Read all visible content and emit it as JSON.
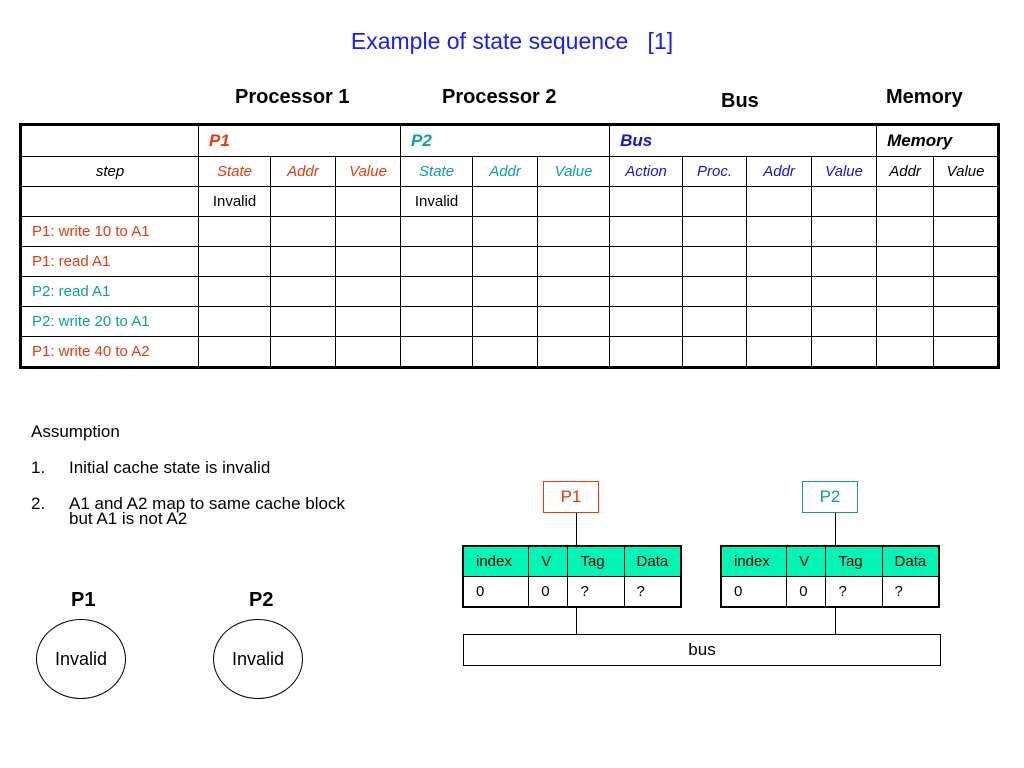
{
  "title": "Example of state sequence   [1]",
  "column_headers": {
    "processor1": "Processor 1",
    "processor2": "Processor 2",
    "bus": "Bus",
    "memory": "Memory"
  },
  "table": {
    "groups": {
      "p1": "P1",
      "p2": "P2",
      "bus": "Bus",
      "memory": "Memory"
    },
    "subheaders": {
      "step": "step",
      "p1": [
        "State",
        "Addr",
        "Value"
      ],
      "p2": [
        "State",
        "Addr",
        "Value"
      ],
      "bus": [
        "Action",
        "Proc.",
        "Addr",
        "Value"
      ],
      "memory": [
        "Addr",
        "Value"
      ]
    },
    "rows": [
      {
        "step": "",
        "p1_state": "Invalid",
        "p2_state": "Invalid"
      },
      {
        "step": "P1: write 10 to A1"
      },
      {
        "step": "P1: read A1"
      },
      {
        "step": "P2: read A1"
      },
      {
        "step": "P2: write 20 to A1"
      },
      {
        "step": "P1: write 40 to A2"
      }
    ]
  },
  "assumption": {
    "heading": "Assumption",
    "items": [
      {
        "num": "1.",
        "text": "Initial cache state is invalid"
      },
      {
        "num": "2.",
        "text": "A1 and A2 map to same cache block",
        "cont": "but A1 is not A2"
      }
    ]
  },
  "state_diagrams": [
    {
      "label": "P1",
      "state": "Invalid"
    },
    {
      "label": "P2",
      "state": "Invalid"
    }
  ],
  "caches": [
    {
      "proc": "P1",
      "headers": [
        "index",
        "V",
        "Tag",
        "Data"
      ],
      "row": [
        "0",
        "0",
        "?",
        "?"
      ]
    },
    {
      "proc": "P2",
      "headers": [
        "index",
        "V",
        "Tag",
        "Data"
      ],
      "row": [
        "0",
        "0",
        "?",
        "?"
      ]
    }
  ],
  "bus_label": "bus",
  "colors": {
    "title": "#1a1aff",
    "p1": "#e83b0c",
    "p2": "#0c9f9f",
    "bus": "#1414d6",
    "cache_header": "#00f5b4"
  }
}
